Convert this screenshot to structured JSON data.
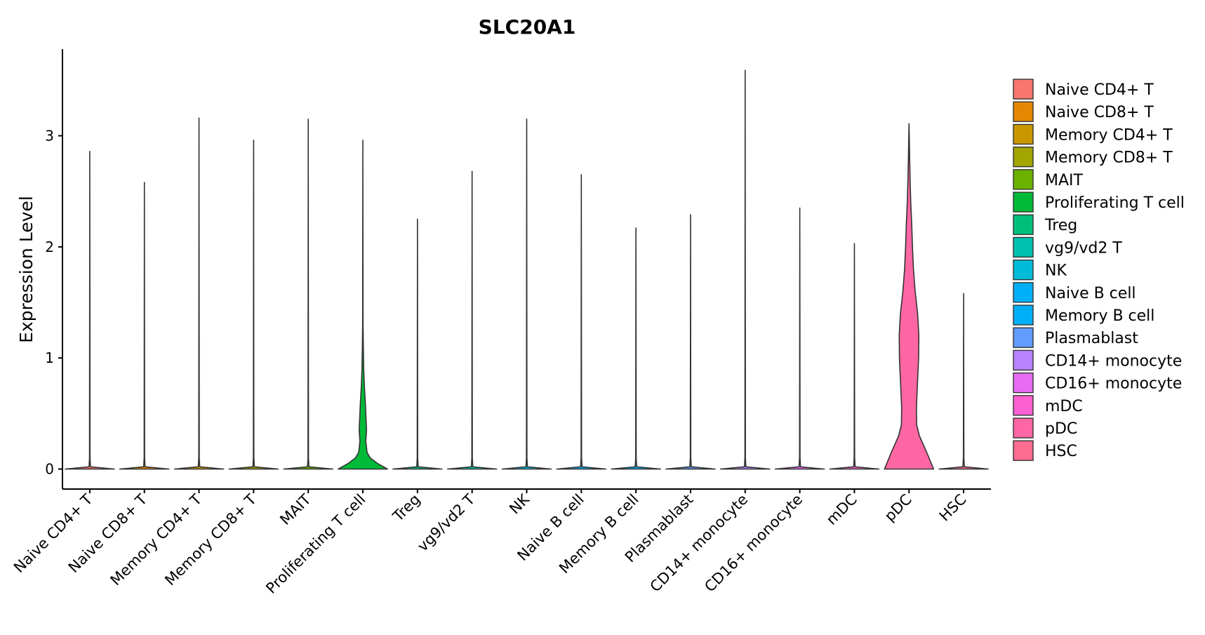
{
  "chart_data": {
    "type": "violin",
    "title": "SLC20A1",
    "xlabel": "",
    "ylabel": "Expression Level",
    "ylim": [
      -0.18,
      3.78
    ],
    "yticks": [
      0,
      1,
      2,
      3
    ],
    "grid": false,
    "legend_position": "right",
    "categories": [
      "Naive CD4+ T",
      "Naive CD8+ T",
      "Memory CD4+ T",
      "Memory CD8+ T",
      "MAIT",
      "Proliferating T cell",
      "Treg",
      "vg9/vd2 T",
      "NK",
      "Naive B cell",
      "Memory B cell",
      "Plasmablast",
      "CD14+ monocyte",
      "CD16+ monocyte",
      "mDC",
      "pDC",
      "HSC"
    ],
    "colors": [
      "#F8766D",
      "#E58700",
      "#C99800",
      "#A3A500",
      "#6BB100",
      "#00BA38",
      "#00BF7D",
      "#00C0AF",
      "#00BCD8",
      "#00B0F6",
      "#00B0F6",
      "#619CFF",
      "#B983FF",
      "#E76BF3",
      "#FD61D1",
      "#FF67A4",
      "#FF6C91"
    ],
    "series": [
      {
        "name": "Naive CD4+ T",
        "max": 2.86,
        "profile": [
          [
            0,
            1.0
          ],
          [
            0.02,
            0.03
          ],
          [
            0.1,
            0.01
          ]
        ]
      },
      {
        "name": "Naive CD8+ T",
        "max": 2.58,
        "profile": [
          [
            0,
            1.0
          ],
          [
            0.02,
            0.03
          ],
          [
            0.1,
            0.01
          ]
        ]
      },
      {
        "name": "Memory CD4+ T",
        "max": 3.16,
        "profile": [
          [
            0,
            1.0
          ],
          [
            0.02,
            0.03
          ],
          [
            0.1,
            0.01
          ]
        ]
      },
      {
        "name": "Memory CD8+ T",
        "max": 2.96,
        "profile": [
          [
            0,
            1.0
          ],
          [
            0.02,
            0.03
          ],
          [
            0.1,
            0.01
          ]
        ]
      },
      {
        "name": "MAIT",
        "max": 3.15,
        "profile": [
          [
            0,
            1.0
          ],
          [
            0.02,
            0.03
          ],
          [
            0.1,
            0.01
          ]
        ]
      },
      {
        "name": "Proliferating T cell",
        "max": 2.96,
        "profile": [
          [
            0,
            1.0
          ],
          [
            0.05,
            0.6
          ],
          [
            0.1,
            0.3
          ],
          [
            0.15,
            0.17
          ],
          [
            0.25,
            0.12
          ],
          [
            0.35,
            0.15
          ],
          [
            0.45,
            0.13
          ],
          [
            0.6,
            0.1
          ],
          [
            0.75,
            0.06
          ],
          [
            0.9,
            0.035
          ],
          [
            1.1,
            0.02
          ],
          [
            1.3,
            0.008
          ]
        ]
      },
      {
        "name": "Treg",
        "max": 2.25,
        "profile": [
          [
            0,
            1.0
          ],
          [
            0.02,
            0.03
          ],
          [
            0.1,
            0.01
          ]
        ]
      },
      {
        "name": "vg9/vd2 T",
        "max": 2.68,
        "profile": [
          [
            0,
            1.0
          ],
          [
            0.02,
            0.03
          ],
          [
            0.1,
            0.01
          ]
        ]
      },
      {
        "name": "NK",
        "max": 3.15,
        "profile": [
          [
            0,
            1.0
          ],
          [
            0.02,
            0.03
          ],
          [
            0.1,
            0.01
          ]
        ]
      },
      {
        "name": "Naive B cell",
        "max": 2.65,
        "profile": [
          [
            0,
            1.0
          ],
          [
            0.02,
            0.03
          ],
          [
            0.1,
            0.01
          ]
        ]
      },
      {
        "name": "Memory B cell",
        "max": 2.17,
        "profile": [
          [
            0,
            1.0
          ],
          [
            0.02,
            0.03
          ],
          [
            0.1,
            0.01
          ]
        ]
      },
      {
        "name": "Plasmablast",
        "max": 2.29,
        "profile": [
          [
            0,
            1.0
          ],
          [
            0.02,
            0.03
          ],
          [
            0.1,
            0.01
          ]
        ]
      },
      {
        "name": "CD14+ monocyte",
        "max": 3.59,
        "profile": [
          [
            0,
            1.0
          ],
          [
            0.02,
            0.03
          ],
          [
            0.1,
            0.01
          ]
        ]
      },
      {
        "name": "CD16+ monocyte",
        "max": 2.35,
        "profile": [
          [
            0,
            1.0
          ],
          [
            0.02,
            0.03
          ],
          [
            0.1,
            0.01
          ]
        ]
      },
      {
        "name": "mDC",
        "max": 2.03,
        "profile": [
          [
            0,
            1.0
          ],
          [
            0.02,
            0.03
          ],
          [
            0.1,
            0.01
          ]
        ]
      },
      {
        "name": "pDC",
        "max": 3.11,
        "profile": [
          [
            0,
            1.0
          ],
          [
            0.15,
            0.72
          ],
          [
            0.3,
            0.42
          ],
          [
            0.4,
            0.31
          ],
          [
            0.55,
            0.3
          ],
          [
            0.8,
            0.35
          ],
          [
            1.0,
            0.39
          ],
          [
            1.2,
            0.4
          ],
          [
            1.4,
            0.35
          ],
          [
            1.6,
            0.25
          ],
          [
            1.8,
            0.18
          ],
          [
            2.0,
            0.14
          ],
          [
            2.2,
            0.11
          ],
          [
            2.4,
            0.07
          ],
          [
            2.6,
            0.045
          ],
          [
            2.8,
            0.025
          ],
          [
            3.0,
            0.01
          ]
        ]
      },
      {
        "name": "HSC",
        "max": 1.58,
        "profile": [
          [
            0,
            1.0
          ],
          [
            0.02,
            0.03
          ],
          [
            0.1,
            0.01
          ]
        ]
      }
    ]
  }
}
